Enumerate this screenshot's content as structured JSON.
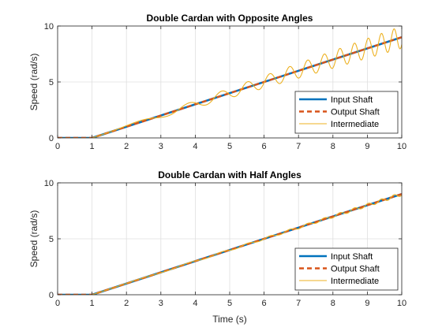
{
  "colors": {
    "input": "#0072BD",
    "output": "#D95319",
    "intermediate": "#EDB120",
    "grid": "#dfdfdf",
    "axis": "#262626"
  },
  "chart_data": [
    {
      "type": "line",
      "title": "Double Cardan with Opposite Angles",
      "xlabel": "",
      "ylabel": "Speed (rad/s)",
      "xlim": [
        0,
        10
      ],
      "ylim": [
        0,
        10
      ],
      "xticks": [
        "0",
        "1",
        "2",
        "3",
        "4",
        "5",
        "6",
        "7",
        "8",
        "9",
        "10"
      ],
      "yticks": [
        "0",
        "5",
        "10"
      ],
      "grid": true,
      "legend_position": "bottom-right",
      "series": [
        {
          "name": "Input Shaft",
          "style": "solid-thick",
          "x": [
            0,
            1,
            10
          ],
          "y": [
            0,
            0,
            9
          ]
        },
        {
          "name": "Output Shaft",
          "style": "dashed",
          "x": [
            0,
            1,
            10
          ],
          "y": [
            0,
            0,
            9
          ]
        },
        {
          "name": "Intermediate",
          "style": "solid-thin",
          "x": [
            0,
            1,
            10
          ],
          "y": [
            0,
            0,
            9
          ],
          "oscillation": {
            "relative_amplitude": 0.11,
            "cycles_per_radian": 0.159
          }
        }
      ]
    },
    {
      "type": "line",
      "title": "Double Cardan with Half Angles",
      "xlabel": "Time (s)",
      "ylabel": "Speed (rad/s)",
      "xlim": [
        0,
        10
      ],
      "ylim": [
        0,
        10
      ],
      "xticks": [
        "0",
        "1",
        "2",
        "3",
        "4",
        "5",
        "6",
        "7",
        "8",
        "9",
        "10"
      ],
      "yticks": [
        "0",
        "5",
        "10"
      ],
      "grid": true,
      "legend_position": "bottom-right",
      "series": [
        {
          "name": "Input Shaft",
          "style": "solid-thick",
          "x": [
            0,
            1,
            10
          ],
          "y": [
            0,
            0,
            9
          ]
        },
        {
          "name": "Output Shaft",
          "style": "dashed",
          "x": [
            0,
            1,
            10
          ],
          "y": [
            0,
            0,
            9
          ]
        },
        {
          "name": "Intermediate",
          "style": "solid-thin",
          "x": [
            0,
            1,
            10
          ],
          "y": [
            0,
            0,
            9
          ],
          "oscillation": {
            "relative_amplitude": 0.018,
            "cycles_per_radian": 0.159
          }
        }
      ]
    }
  ]
}
